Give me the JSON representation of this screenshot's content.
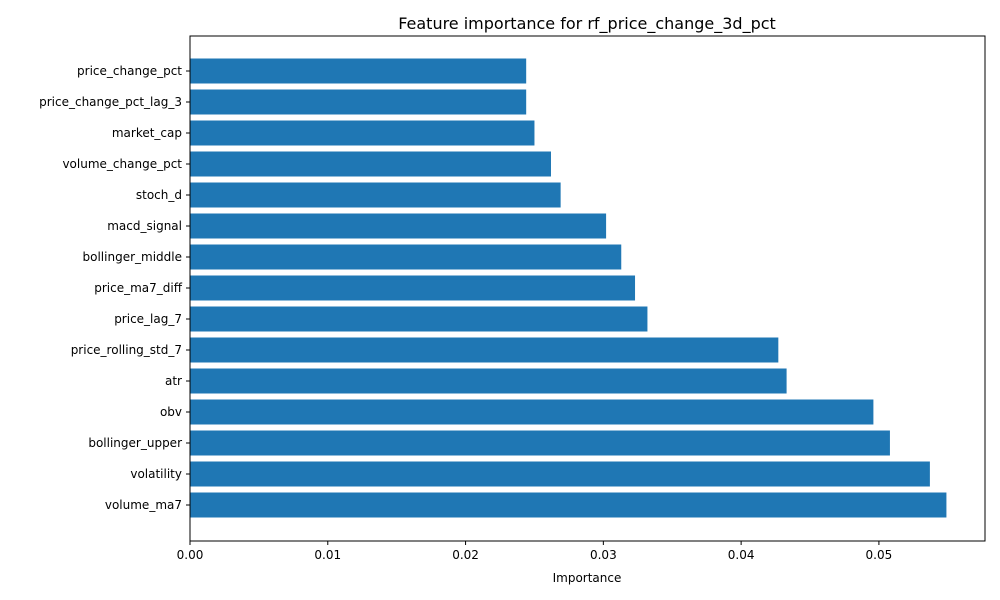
{
  "chart_data": {
    "type": "bar",
    "orientation": "horizontal",
    "title": "Feature importance for rf_price_change_3d_pct",
    "xlabel": "Importance",
    "ylabel": "",
    "xlim": [
      0,
      0.0577
    ],
    "xticks": [
      0.0,
      0.01,
      0.02,
      0.03,
      0.04,
      0.05
    ],
    "xtick_labels": [
      "0.00",
      "0.01",
      "0.02",
      "0.03",
      "0.04",
      "0.05"
    ],
    "grid": false,
    "bar_color": "#1f77b4",
    "categories": [
      "price_change_pct",
      "price_change_pct_lag_3",
      "market_cap",
      "volume_change_pct",
      "stoch_d",
      "macd_signal",
      "bollinger_middle",
      "price_ma7_diff",
      "price_lag_7",
      "price_rolling_std_7",
      "atr",
      "obv",
      "bollinger_upper",
      "volatility",
      "volume_ma7"
    ],
    "values": [
      0.0244,
      0.0244,
      0.025,
      0.0262,
      0.0269,
      0.0302,
      0.0313,
      0.0323,
      0.0332,
      0.0427,
      0.0433,
      0.0496,
      0.0508,
      0.0537,
      0.0549
    ]
  }
}
